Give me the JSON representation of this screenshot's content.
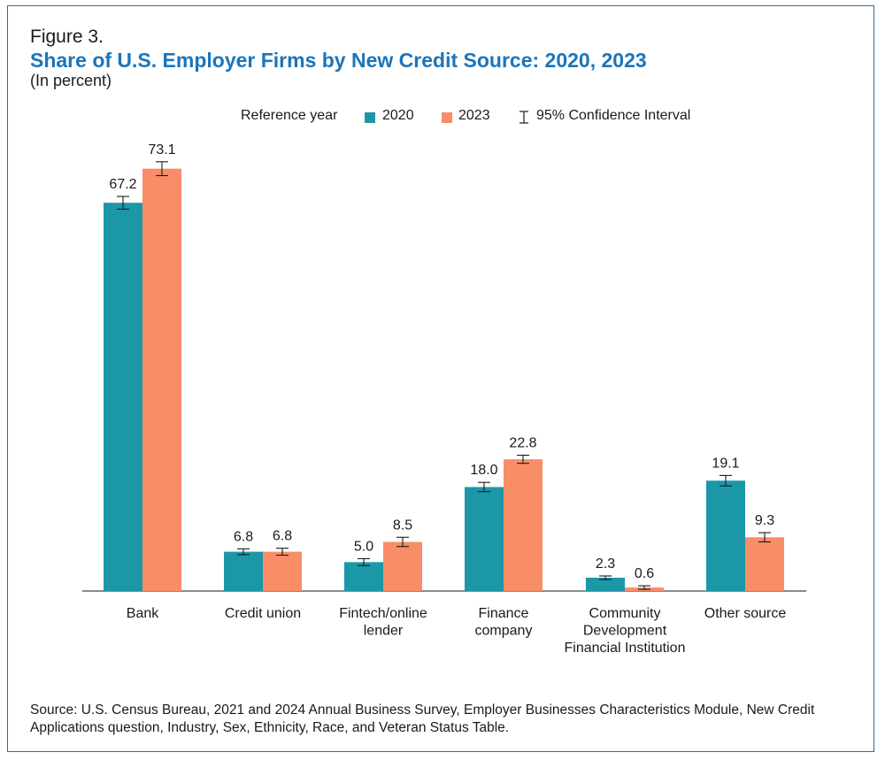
{
  "figure_label": "Figure 3.",
  "title": "Share of U.S. Employer Firms by New Credit Source: 2020, 2023",
  "subtitle": "(In percent)",
  "legend": {
    "title": "Reference year",
    "item_2020": "2020",
    "item_2023": "2023",
    "ci_label": "95% Confidence Interval"
  },
  "colors": {
    "2020": "#1b97a8",
    "2023": "#f88d68",
    "accent": "#1b75bb"
  },
  "source": "Source: U.S. Census Bureau, 2021 and 2024 Annual Business Survey, Employer Businesses Characteristics Module, New Credit Applications question, Industry, Sex, Ethnicity, Race, and Veteran Status Table.",
  "chart_data": {
    "type": "bar",
    "categories": [
      "Bank",
      "Credit union",
      "Fintech/online lender",
      "Finance company",
      "Community Development Financial Institution",
      "Other source"
    ],
    "category_lines": [
      [
        "Bank"
      ],
      [
        "Credit union"
      ],
      [
        "Fintech/online",
        "lender"
      ],
      [
        "Finance",
        "company"
      ],
      [
        "Community",
        "Development",
        "Financial Institution"
      ],
      [
        "Other source"
      ]
    ],
    "series": [
      {
        "name": "2020",
        "values": [
          67.2,
          6.8,
          5.0,
          18.0,
          2.3,
          19.1
        ],
        "labels": [
          "67.2",
          "6.8",
          "5.0",
          "18.0",
          "2.3",
          "19.1"
        ],
        "ci": [
          1.1,
          0.5,
          0.6,
          0.8,
          0.3,
          0.9
        ]
      },
      {
        "name": "2023",
        "values": [
          73.1,
          6.8,
          8.5,
          22.8,
          0.6,
          9.3
        ],
        "labels": [
          "73.1",
          "6.8",
          "8.5",
          "22.8",
          "0.6",
          "9.3"
        ],
        "ci": [
          1.2,
          0.6,
          0.8,
          0.7,
          0.2,
          0.8
        ]
      }
    ],
    "ylim": [
      0,
      75
    ],
    "grid": false,
    "legend_position": "top"
  }
}
